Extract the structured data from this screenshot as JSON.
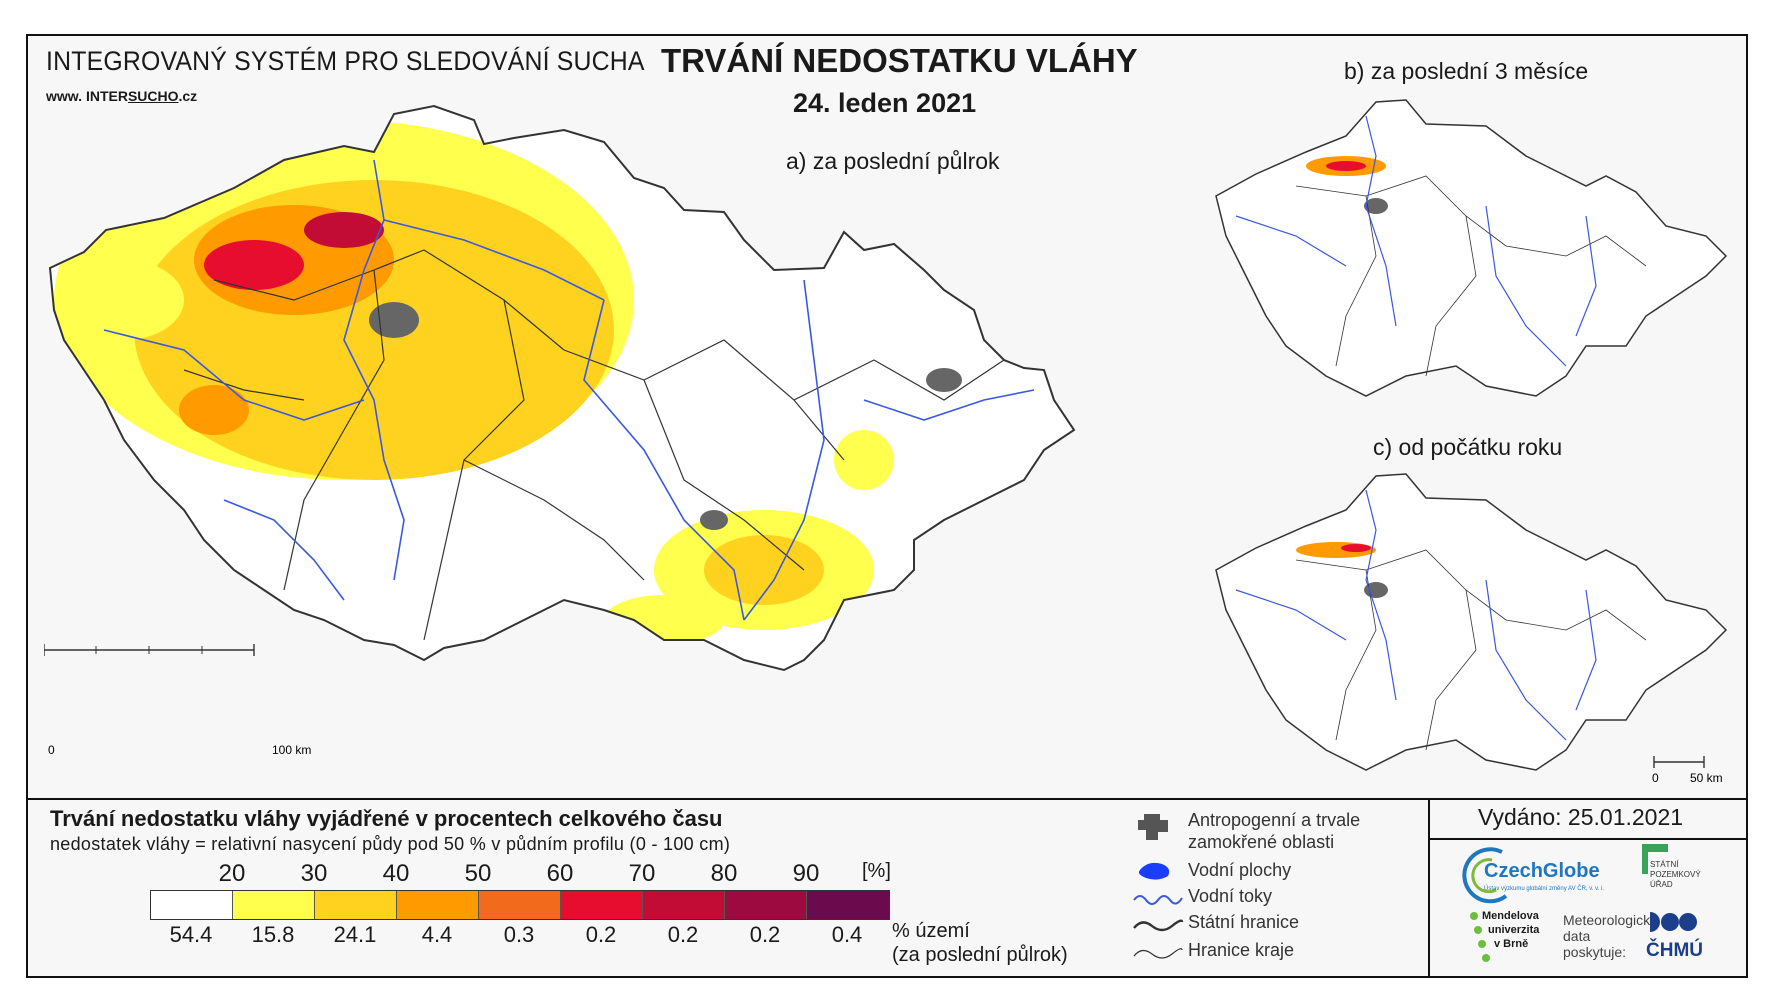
{
  "header": {
    "system_title": "INTEGROVANÝ SYSTÉM PRO SLEDOVÁNÍ SUCHA",
    "website_prefix": "www. ",
    "website_a": "INTER",
    "website_b": "SUCHO",
    "website_c": ".cz",
    "main_title": "TRVÁNÍ NEDOSTATKU VLÁHY",
    "date": "24. leden 2021"
  },
  "maps": {
    "a_label": "a) za poslední půlrok",
    "b_label": "b) za poslední 3 měsíce",
    "c_label": "c) od počátku roku",
    "scale_a": {
      "start": "0",
      "end": "100 km"
    },
    "scale_c": {
      "start": "0",
      "end": "50 km"
    }
  },
  "legend": {
    "title": "Trvání nedostatku vláhy vyjádřené v procentech celkového času",
    "subtitle": "nedostatek vláhy = relativní nasycení půdy pod 50 % v půdním profilu (0 - 100 cm)",
    "unit": "[%]",
    "thresholds": [
      "20",
      "30",
      "40",
      "50",
      "60",
      "70",
      "80",
      "90"
    ],
    "colors": [
      "#ffffff",
      "#ffff4d",
      "#ffd21f",
      "#ff9a00",
      "#f26a1b",
      "#e60d2e",
      "#c20c36",
      "#9c0a3f",
      "#6b0b4e"
    ],
    "percent_area": [
      "54.4",
      "15.8",
      "24.1",
      "4.4",
      "0.3",
      "0.2",
      "0.2",
      "0.2",
      "0.4"
    ],
    "percent_label_1": "% území",
    "percent_label_2": "(za poslední půlrok)"
  },
  "symbols": {
    "urban": "Antropogenní a trvale",
    "urban2": "zamokřené oblasti",
    "water_bodies": "Vodní plochy",
    "rivers": "Vodní toky",
    "state_border": "Státní hranice",
    "region_border": "Hranice kraje"
  },
  "issued": "Vydáno: 25.01.2021",
  "logos": {
    "czechglobe": "CzechGlobe",
    "czechglobe_sub": "Ústav výzkumu globální změny AV ČR, v. v. i.",
    "spu_1": "STÁTNÍ",
    "spu_2": "POZEMKOVÝ",
    "spu_3": "ÚŘAD",
    "mendel_1": "Mendelova",
    "mendel_2": "univerzita",
    "mendel_3": "v Brně",
    "meteo_1": "Meteorologická",
    "meteo_2": "data",
    "meteo_3": "poskytuje:",
    "chmu": "ČHMÚ"
  }
}
